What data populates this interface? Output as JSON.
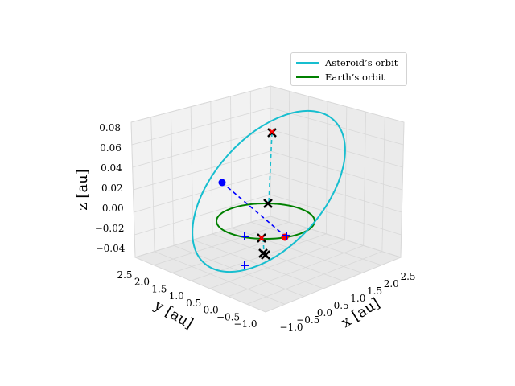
{
  "chart_data": {
    "type": "line3d",
    "xlabel": "x [au]",
    "ylabel": "y [au]",
    "zlabel": "z [au]",
    "x_ticks": [
      "−1.0",
      "−0.5",
      "0.0",
      "0.5",
      "1.0",
      "1.5",
      "2.0",
      "2.5"
    ],
    "y_ticks": [
      "2.5",
      "2.0",
      "1.5",
      "1.0",
      "0.5",
      "0.0",
      "−0.5",
      "−1.0"
    ],
    "z_ticks": [
      "0.08",
      "0.06",
      "0.04",
      "0.02",
      "0.00",
      "−0.02",
      "−0.04"
    ],
    "xlim": [
      -1.3,
      2.7
    ],
    "ylim": [
      -1.3,
      2.7
    ],
    "zlim": [
      -0.05,
      0.085
    ],
    "legend_position": "upper-right",
    "series": [
      {
        "name": "Asteroid’s orbit",
        "color": "#17becf",
        "kind": "ellipse",
        "points_au": "closed orbit, inclined, extends to z ≈ 0.08"
      },
      {
        "name": "Earth’s orbit",
        "color": "#008000",
        "kind": "circle",
        "radius_au": 1.0
      }
    ],
    "markers": [
      {
        "label": "blue-dot",
        "color": "#0000ff",
        "shape": "dot"
      },
      {
        "label": "red-dot",
        "color": "#ff0000",
        "shape": "dot"
      },
      {
        "label": "blue-plus-1",
        "color": "#0000ff",
        "shape": "plus"
      },
      {
        "label": "blue-plus-2",
        "color": "#0000ff",
        "shape": "plus"
      },
      {
        "label": "blue-plus-3",
        "color": "#0000ff",
        "shape": "plus"
      },
      {
        "label": "black-x",
        "color": "#000000",
        "shape": "x"
      },
      {
        "label": "red-x",
        "color": "#ff0000",
        "shape": "x"
      }
    ]
  }
}
